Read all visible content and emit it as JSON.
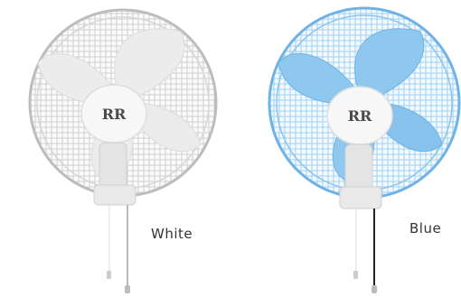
{
  "products": [
    {
      "variant": "White",
      "logo": "RR",
      "grill_color": "#c7c7c7",
      "blade_color": "#ededed",
      "hub_color": "#f6f6f6",
      "cord_color": "#9a9a9a"
    },
    {
      "variant": "Blue",
      "logo": "RR",
      "grill_color": "#6fb3e6",
      "blade_color": "#8ec8ef",
      "hub_color": "#f6f6f6",
      "cord_color": "#222222"
    }
  ],
  "colors": {
    "logo_text": "#4a4a4a",
    "label_text": "#333333",
    "background": "#ffffff"
  }
}
